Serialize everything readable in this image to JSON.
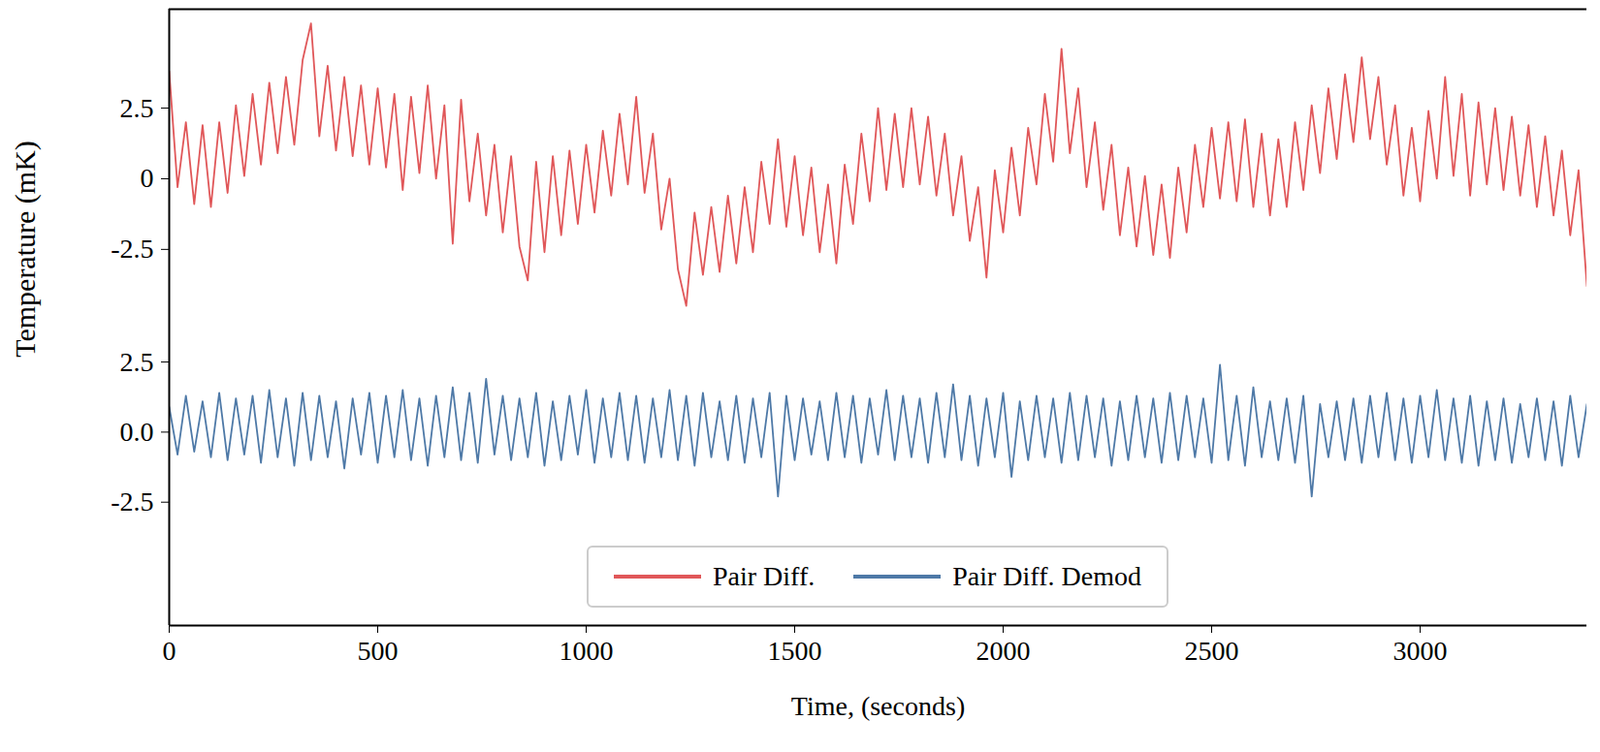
{
  "chart_data": [
    {
      "type": "line",
      "ylabel": "Temperature (mK)",
      "tick_labels": "y",
      "xlim": [
        0,
        3400
      ],
      "ylim": [
        -4.7,
        6.0
      ],
      "yticks": [
        2.5,
        0,
        -2.5
      ],
      "x": [
        0,
        20,
        40,
        60,
        80,
        100,
        120,
        140,
        160,
        180,
        200,
        220,
        240,
        260,
        280,
        300,
        320,
        340,
        360,
        380,
        400,
        420,
        440,
        460,
        480,
        500,
        520,
        540,
        560,
        580,
        600,
        620,
        640,
        660,
        680,
        700,
        720,
        740,
        760,
        780,
        800,
        820,
        840,
        860,
        880,
        900,
        920,
        940,
        960,
        980,
        1000,
        1020,
        1040,
        1060,
        1080,
        1100,
        1120,
        1140,
        1160,
        1180,
        1200,
        1220,
        1240,
        1260,
        1280,
        1300,
        1320,
        1340,
        1360,
        1380,
        1400,
        1420,
        1440,
        1460,
        1480,
        1500,
        1520,
        1540,
        1560,
        1580,
        1600,
        1620,
        1640,
        1660,
        1680,
        1700,
        1720,
        1740,
        1760,
        1780,
        1800,
        1820,
        1840,
        1860,
        1880,
        1900,
        1920,
        1940,
        1960,
        1980,
        2000,
        2020,
        2040,
        2060,
        2080,
        2100,
        2120,
        2140,
        2160,
        2180,
        2200,
        2220,
        2240,
        2260,
        2280,
        2300,
        2320,
        2340,
        2360,
        2380,
        2400,
        2420,
        2440,
        2460,
        2480,
        2500,
        2520,
        2540,
        2560,
        2580,
        2600,
        2620,
        2640,
        2660,
        2680,
        2700,
        2720,
        2740,
        2760,
        2780,
        2800,
        2820,
        2840,
        2860,
        2880,
        2900,
        2920,
        2940,
        2960,
        2980,
        3000,
        3020,
        3040,
        3060,
        3080,
        3100,
        3120,
        3140,
        3160,
        3180,
        3200,
        3220,
        3240,
        3260,
        3280,
        3300,
        3320,
        3340,
        3360,
        3380,
        3400
      ],
      "series": [
        {
          "name": "Pair Diff.",
          "color": "#e05759",
          "values": [
            3.8,
            -0.3,
            2.0,
            -0.9,
            1.9,
            -1.0,
            2.0,
            -0.5,
            2.6,
            0.1,
            3.0,
            0.5,
            3.4,
            0.9,
            3.6,
            1.2,
            4.2,
            5.5,
            1.5,
            4.0,
            1.0,
            3.6,
            0.8,
            3.3,
            0.5,
            3.2,
            0.4,
            3.0,
            -0.4,
            2.9,
            0.2,
            3.3,
            0.0,
            2.6,
            -2.3,
            2.8,
            -0.8,
            1.6,
            -1.3,
            1.2,
            -1.9,
            0.8,
            -2.4,
            -3.6,
            0.6,
            -2.6,
            0.8,
            -2.0,
            1.0,
            -1.6,
            1.2,
            -1.2,
            1.7,
            -0.6,
            2.3,
            -0.2,
            2.9,
            -0.5,
            1.6,
            -1.8,
            0.0,
            -3.2,
            -4.5,
            -1.2,
            -3.4,
            -1.0,
            -3.3,
            -0.6,
            -3.0,
            -0.3,
            -2.6,
            0.6,
            -1.6,
            1.4,
            -1.7,
            0.8,
            -2.0,
            0.4,
            -2.6,
            -0.2,
            -3.0,
            0.5,
            -1.6,
            1.6,
            -0.8,
            2.5,
            -0.4,
            2.3,
            -0.3,
            2.5,
            -0.2,
            2.2,
            -0.6,
            1.6,
            -1.3,
            0.8,
            -2.2,
            -0.3,
            -3.5,
            0.3,
            -1.9,
            1.1,
            -1.3,
            1.8,
            -0.2,
            3.0,
            0.6,
            4.6,
            0.9,
            3.2,
            -0.3,
            2.0,
            -1.1,
            1.2,
            -2.0,
            0.4,
            -2.4,
            0.1,
            -2.7,
            -0.2,
            -2.8,
            0.4,
            -1.9,
            1.2,
            -1.0,
            1.8,
            -0.7,
            2.0,
            -0.8,
            2.1,
            -1.0,
            1.6,
            -1.3,
            1.4,
            -1.0,
            2.0,
            -0.4,
            2.6,
            0.2,
            3.2,
            0.7,
            3.7,
            1.3,
            4.3,
            1.4,
            3.6,
            0.5,
            2.6,
            -0.6,
            1.8,
            -0.8,
            2.4,
            0.0,
            3.6,
            0.1,
            3.0,
            -0.6,
            2.7,
            -0.2,
            2.5,
            -0.4,
            2.2,
            -0.6,
            1.9,
            -1.0,
            1.5,
            -1.3,
            1.0,
            -2.0,
            0.3,
            -3.8
          ]
        }
      ]
    },
    {
      "type": "line",
      "xlabel": "Time, (seconds)",
      "legend": "lower center",
      "xlim": [
        0,
        3400
      ],
      "xticks": [
        0,
        500,
        1000,
        1500,
        2000,
        2500,
        3000
      ],
      "ylim": [
        -6.9,
        4.3
      ],
      "yticks": [
        2.5,
        {
          "value": 0,
          "label": "0.0"
        },
        -2.5
      ],
      "x": [
        0,
        20,
        40,
        60,
        80,
        100,
        120,
        140,
        160,
        180,
        200,
        220,
        240,
        260,
        280,
        300,
        320,
        340,
        360,
        380,
        400,
        420,
        440,
        460,
        480,
        500,
        520,
        540,
        560,
        580,
        600,
        620,
        640,
        660,
        680,
        700,
        720,
        740,
        760,
        780,
        800,
        820,
        840,
        860,
        880,
        900,
        920,
        940,
        960,
        980,
        1000,
        1020,
        1040,
        1060,
        1080,
        1100,
        1120,
        1140,
        1160,
        1180,
        1200,
        1220,
        1240,
        1260,
        1280,
        1300,
        1320,
        1340,
        1360,
        1380,
        1400,
        1420,
        1440,
        1460,
        1480,
        1500,
        1520,
        1540,
        1560,
        1580,
        1600,
        1620,
        1640,
        1660,
        1680,
        1700,
        1720,
        1740,
        1760,
        1780,
        1800,
        1820,
        1840,
        1860,
        1880,
        1900,
        1920,
        1940,
        1960,
        1980,
        2000,
        2020,
        2040,
        2060,
        2080,
        2100,
        2120,
        2140,
        2160,
        2180,
        2200,
        2220,
        2240,
        2260,
        2280,
        2300,
        2320,
        2340,
        2360,
        2380,
        2400,
        2420,
        2440,
        2460,
        2480,
        2500,
        2520,
        2540,
        2560,
        2580,
        2600,
        2620,
        2640,
        2660,
        2680,
        2700,
        2720,
        2740,
        2760,
        2780,
        2800,
        2820,
        2840,
        2860,
        2880,
        2900,
        2920,
        2940,
        2960,
        2980,
        3000,
        3020,
        3040,
        3060,
        3080,
        3100,
        3120,
        3140,
        3160,
        3180,
        3200,
        3220,
        3240,
        3260,
        3280,
        3300,
        3320,
        3340,
        3360,
        3380,
        3400
      ],
      "series": [
        {
          "name": "Pair Diff. Demod",
          "color": "#4e79a7",
          "values": [
            0.9,
            -0.8,
            1.3,
            -0.7,
            1.1,
            -0.9,
            1.4,
            -1.0,
            1.2,
            -0.8,
            1.3,
            -1.1,
            1.5,
            -0.9,
            1.2,
            -1.2,
            1.4,
            -1.0,
            1.3,
            -0.9,
            1.1,
            -1.3,
            1.2,
            -0.8,
            1.4,
            -1.1,
            1.3,
            -0.9,
            1.5,
            -1.0,
            1.2,
            -1.2,
            1.3,
            -0.9,
            1.6,
            -1.0,
            1.4,
            -1.1,
            1.9,
            -0.8,
            1.3,
            -1.0,
            1.2,
            -0.9,
            1.4,
            -1.2,
            1.1,
            -1.0,
            1.3,
            -0.8,
            1.5,
            -1.1,
            1.2,
            -0.9,
            1.4,
            -1.0,
            1.3,
            -1.1,
            1.2,
            -0.9,
            1.5,
            -1.0,
            1.3,
            -1.2,
            1.4,
            -0.9,
            1.1,
            -1.0,
            1.3,
            -1.1,
            1.2,
            -0.9,
            1.4,
            -2.3,
            1.3,
            -1.0,
            1.2,
            -0.8,
            1.1,
            -1.0,
            1.4,
            -0.9,
            1.3,
            -1.1,
            1.2,
            -0.8,
            1.5,
            -1.0,
            1.3,
            -0.9,
            1.2,
            -1.1,
            1.4,
            -0.9,
            1.7,
            -1.0,
            1.3,
            -1.2,
            1.2,
            -0.9,
            1.4,
            -1.6,
            1.1,
            -1.0,
            1.3,
            -0.9,
            1.2,
            -1.1,
            1.4,
            -1.0,
            1.3,
            -0.9,
            1.2,
            -1.2,
            1.1,
            -1.0,
            1.3,
            -0.9,
            1.2,
            -1.1,
            1.4,
            -1.0,
            1.3,
            -0.9,
            1.2,
            -1.1,
            2.4,
            -1.0,
            1.3,
            -1.2,
            1.6,
            -0.9,
            1.1,
            -1.0,
            1.2,
            -1.1,
            1.3,
            -2.3,
            1.0,
            -0.9,
            1.1,
            -1.0,
            1.2,
            -1.1,
            1.3,
            -0.9,
            1.4,
            -1.0,
            1.2,
            -1.1,
            1.3,
            -0.9,
            1.5,
            -1.0,
            1.2,
            -1.1,
            1.3,
            -1.2,
            1.1,
            -1.0,
            1.2,
            -1.1,
            1.0,
            -0.9,
            1.2,
            -1.0,
            1.1,
            -1.2,
            1.3,
            -0.9,
            1.0
          ]
        }
      ]
    }
  ]
}
